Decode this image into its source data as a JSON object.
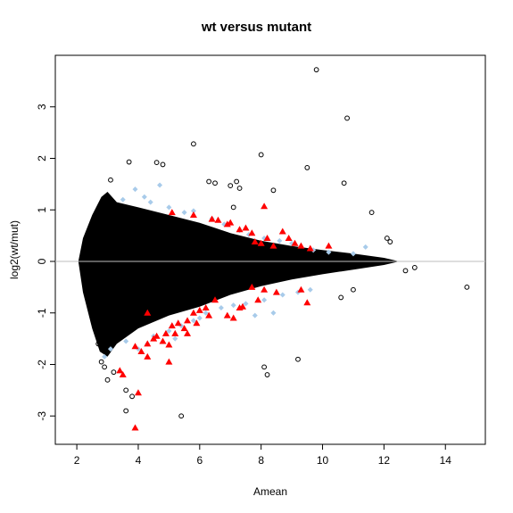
{
  "chart_data": {
    "type": "scatter",
    "title": "wt versus mutant",
    "xlabel": "Amean",
    "ylabel": "log2(wt/mut)",
    "xlim": [
      1.3,
      15.3
    ],
    "ylim": [
      -3.55,
      4.0
    ],
    "x_ticks": [
      2,
      4,
      6,
      8,
      10,
      12,
      14
    ],
    "y_ticks": [
      -3,
      -2,
      -1,
      0,
      1,
      2,
      3
    ],
    "y_tick_labels": [
      "-3",
      "-2",
      "-1",
      "0",
      "1",
      "2",
      "3"
    ],
    "reference_line_y": 0,
    "grid": false,
    "legend": "none",
    "colors": {
      "cloud": "#000000",
      "moderate": "#a8cbea",
      "significant": "#ff0000",
      "reference_line": "#bebebe"
    },
    "series": [
      {
        "marker": "open-circle",
        "points": [
          [
            9.8,
            3.72
          ],
          [
            10.8,
            2.78
          ],
          [
            5.8,
            2.28
          ],
          [
            8.0,
            2.07
          ],
          [
            4.6,
            1.92
          ],
          [
            3.7,
            1.93
          ],
          [
            4.8,
            1.88
          ],
          [
            9.5,
            1.82
          ],
          [
            6.3,
            1.55
          ],
          [
            6.5,
            1.52
          ],
          [
            7.2,
            1.55
          ],
          [
            10.7,
            1.52
          ],
          [
            3.1,
            1.58
          ],
          [
            7.0,
            1.47
          ],
          [
            7.3,
            1.42
          ],
          [
            8.4,
            1.38
          ],
          [
            7.1,
            1.05
          ],
          [
            11.6,
            0.95
          ],
          [
            12.1,
            0.45
          ],
          [
            12.2,
            0.38
          ],
          [
            13.0,
            -0.12
          ],
          [
            12.7,
            -0.18
          ],
          [
            14.7,
            -0.5
          ],
          [
            11.0,
            -0.55
          ],
          [
            10.6,
            -0.7
          ],
          [
            3.6,
            -2.9
          ],
          [
            5.4,
            -3.0
          ],
          [
            3.8,
            -2.62
          ],
          [
            3.6,
            -2.5
          ],
          [
            8.1,
            -2.05
          ],
          [
            8.2,
            -2.2
          ],
          [
            9.2,
            -1.9
          ],
          [
            3.0,
            -2.3
          ],
          [
            3.2,
            -2.15
          ],
          [
            2.9,
            -2.05
          ],
          [
            2.8,
            -1.95
          ],
          [
            2.7,
            -1.6
          ],
          [
            2.6,
            -1.3
          ]
        ]
      },
      {
        "marker": "filled-diamond",
        "points": [
          [
            3.5,
            1.2
          ],
          [
            3.9,
            1.4
          ],
          [
            4.2,
            1.25
          ],
          [
            4.7,
            1.48
          ],
          [
            4.4,
            1.15
          ],
          [
            5.0,
            1.05
          ],
          [
            5.5,
            0.95
          ],
          [
            5.8,
            0.98
          ],
          [
            6.4,
            0.83
          ],
          [
            6.8,
            0.72
          ],
          [
            7.3,
            0.6
          ],
          [
            7.6,
            0.52
          ],
          [
            8.1,
            0.45
          ],
          [
            8.6,
            0.4
          ],
          [
            9.0,
            0.35
          ],
          [
            9.7,
            0.22
          ],
          [
            10.2,
            0.18
          ],
          [
            11.0,
            0.15
          ],
          [
            11.4,
            0.28
          ],
          [
            3.6,
            -1.55
          ],
          [
            4.0,
            -1.7
          ],
          [
            4.5,
            -1.45
          ],
          [
            5.0,
            -1.35
          ],
          [
            5.4,
            -1.25
          ],
          [
            5.8,
            -1.15
          ],
          [
            6.2,
            -1.0
          ],
          [
            6.7,
            -0.9
          ],
          [
            7.1,
            -0.85
          ],
          [
            7.5,
            -0.82
          ],
          [
            8.1,
            -0.75
          ],
          [
            8.7,
            -0.65
          ],
          [
            9.2,
            -0.6
          ],
          [
            9.6,
            -0.55
          ],
          [
            2.9,
            -1.85
          ],
          [
            3.1,
            -1.7
          ],
          [
            4.3,
            -1.6
          ],
          [
            5.2,
            -1.5
          ],
          [
            6.0,
            -1.1
          ],
          [
            7.8,
            -1.05
          ],
          [
            8.4,
            -1.0
          ]
        ]
      },
      {
        "marker": "filled-triangle",
        "points": [
          [
            3.9,
            -3.23
          ],
          [
            4.0,
            -2.55
          ],
          [
            3.5,
            -2.2
          ],
          [
            3.4,
            -2.12
          ],
          [
            3.9,
            -1.65
          ],
          [
            4.1,
            -1.75
          ],
          [
            4.3,
            -1.6
          ],
          [
            4.5,
            -1.5
          ],
          [
            4.6,
            -1.45
          ],
          [
            4.8,
            -1.55
          ],
          [
            4.9,
            -1.4
          ],
          [
            5.0,
            -1.62
          ],
          [
            5.2,
            -1.4
          ],
          [
            5.1,
            -1.25
          ],
          [
            5.3,
            -1.2
          ],
          [
            5.5,
            -1.3
          ],
          [
            5.6,
            -1.15
          ],
          [
            5.8,
            -1.0
          ],
          [
            5.9,
            -1.2
          ],
          [
            6.0,
            -0.95
          ],
          [
            6.2,
            -0.9
          ],
          [
            6.3,
            -1.05
          ],
          [
            6.5,
            -0.75
          ],
          [
            4.3,
            -1.85
          ],
          [
            5.0,
            -1.95
          ],
          [
            5.6,
            -1.4
          ],
          [
            6.9,
            -1.05
          ],
          [
            7.1,
            -1.1
          ],
          [
            7.3,
            -0.9
          ],
          [
            7.4,
            -0.88
          ],
          [
            7.7,
            -0.5
          ],
          [
            7.9,
            -0.75
          ],
          [
            8.1,
            -0.55
          ],
          [
            8.5,
            -0.6
          ],
          [
            9.3,
            -0.55
          ],
          [
            9.5,
            -0.8
          ],
          [
            4.3,
            -1.0
          ],
          [
            5.1,
            0.95
          ],
          [
            5.8,
            0.9
          ],
          [
            6.4,
            0.82
          ],
          [
            6.6,
            0.8
          ],
          [
            6.9,
            0.72
          ],
          [
            7.0,
            0.75
          ],
          [
            7.3,
            0.62
          ],
          [
            7.5,
            0.65
          ],
          [
            7.7,
            0.55
          ],
          [
            7.8,
            0.38
          ],
          [
            8.0,
            0.35
          ],
          [
            8.2,
            0.45
          ],
          [
            8.4,
            0.3
          ],
          [
            8.7,
            0.58
          ],
          [
            8.9,
            0.45
          ],
          [
            9.1,
            0.35
          ],
          [
            9.3,
            0.3
          ],
          [
            9.6,
            0.25
          ],
          [
            10.2,
            0.3
          ],
          [
            8.1,
            1.07
          ]
        ]
      }
    ]
  }
}
